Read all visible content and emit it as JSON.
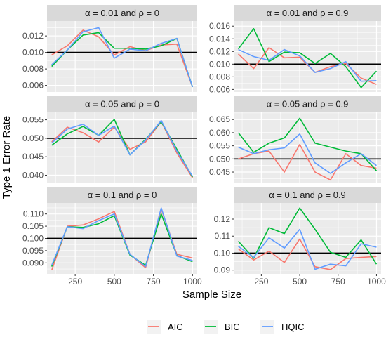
{
  "chart_data": {
    "type": "line",
    "xlabel": "Sample Size",
    "ylabel": "Type 1 Error Rate",
    "x": [
      100,
      200,
      300,
      400,
      500,
      600,
      700,
      800,
      900,
      1000
    ],
    "x_ticks": [
      250,
      500,
      750,
      1000
    ],
    "xlim": [
      70,
      1030
    ],
    "reference_line_color": "#000000",
    "series_colors": {
      "AIC": "#F8766D",
      "BIC": "#00BA38",
      "HQIC": "#619CFF"
    },
    "legend": {
      "position": "bottom",
      "entries": [
        "AIC",
        "BIC",
        "HQIC"
      ]
    },
    "panels": [
      {
        "title": "α = 0.01 and ρ = 0",
        "ylim": [
          0.0052,
          0.0138
        ],
        "y_ticks": [
          0.006,
          0.008,
          0.01,
          0.012
        ],
        "y_tick_labels": [
          "0.006",
          "0.008",
          "0.010",
          "0.012"
        ],
        "reference": 0.01,
        "series": [
          {
            "name": "AIC",
            "values": [
              0.0097,
              0.0108,
              0.0127,
              0.0119,
              0.0097,
              0.0107,
              0.0102,
              0.0109,
              0.011,
              0.0058
            ]
          },
          {
            "name": "BIC",
            "values": [
              0.0083,
              0.0103,
              0.0121,
              0.0124,
              0.0105,
              0.0105,
              0.0104,
              0.0108,
              0.0117,
              0.0058
            ]
          },
          {
            "name": "HQIC",
            "values": [
              0.0085,
              0.0103,
              0.0125,
              0.013,
              0.0093,
              0.0104,
              0.0102,
              0.0111,
              0.0117,
              0.0058
            ]
          }
        ]
      },
      {
        "title": "α = 0.01 and ρ = 0.9",
        "ylim": [
          0.0056,
          0.0168
        ],
        "y_ticks": [
          0.006,
          0.008,
          0.01,
          0.012,
          0.014,
          0.016
        ],
        "y_tick_labels": [
          "0.006",
          "0.008",
          "0.010",
          "0.012",
          "0.014",
          "0.016"
        ],
        "reference": 0.01,
        "series": [
          {
            "name": "AIC",
            "values": [
              0.0116,
              0.0093,
              0.0126,
              0.011,
              0.0111,
              0.0087,
              0.0096,
              0.0101,
              0.0078,
              0.0068
            ]
          },
          {
            "name": "BIC",
            "values": [
              0.0124,
              0.0156,
              0.0104,
              0.0119,
              0.0118,
              0.0101,
              0.0117,
              0.0096,
              0.0063,
              0.0089
            ]
          },
          {
            "name": "HQIC",
            "values": [
              0.0123,
              0.0112,
              0.0106,
              0.0123,
              0.0113,
              0.0087,
              0.0093,
              0.0104,
              0.0073,
              0.0074
            ]
          }
        ]
      },
      {
        "title": "α = 0.05 and ρ = 0",
        "ylim": [
          0.038,
          0.0572
        ],
        "y_ticks": [
          0.04,
          0.045,
          0.05,
          0.055
        ],
        "y_tick_labels": [
          "0.040",
          "0.045",
          "0.050",
          "0.055"
        ],
        "reference": 0.05,
        "series": [
          {
            "name": "AIC",
            "values": [
              0.049,
              0.053,
              0.0515,
              0.049,
              0.053,
              0.047,
              0.049,
              0.0545,
              0.046,
              0.0393
            ]
          },
          {
            "name": "BIC",
            "values": [
              0.0481,
              0.0512,
              0.0532,
              0.0508,
              0.0551,
              0.0455,
              0.0497,
              0.0545,
              0.047,
              0.0395
            ]
          },
          {
            "name": "HQIC",
            "values": [
              0.0487,
              0.0525,
              0.0538,
              0.0508,
              0.0533,
              0.0455,
              0.0495,
              0.0548,
              0.0465,
              0.0397
            ]
          }
        ]
      },
      {
        "title": "α = 0.05 and ρ = 0.9",
        "ylim": [
          0.041,
          0.068
        ],
        "y_ticks": [
          0.045,
          0.05,
          0.055,
          0.06,
          0.065
        ],
        "y_tick_labels": [
          "0.045",
          "0.050",
          "0.055",
          "0.060",
          "0.065"
        ],
        "reference": 0.05,
        "series": [
          {
            "name": "AIC",
            "values": [
              0.05,
              0.052,
              0.053,
              0.045,
              0.0555,
              0.045,
              0.042,
              0.052,
              0.0475,
              0.0465
            ]
          },
          {
            "name": "BIC",
            "values": [
              0.06,
              0.0525,
              0.056,
              0.058,
              0.0655,
              0.056,
              0.0545,
              0.053,
              0.052,
              0.0455
            ]
          },
          {
            "name": "HQIC",
            "values": [
              0.0545,
              0.052,
              0.0535,
              0.0542,
              0.0595,
              0.0485,
              0.0445,
              0.0485,
              0.052,
              0.0475
            ]
          }
        ]
      },
      {
        "title": "α = 0.1 and ρ = 0",
        "ylim": [
          0.0855,
          0.1145
        ],
        "y_ticks": [
          0.09,
          0.095,
          0.1,
          0.105,
          0.11
        ],
        "y_tick_labels": [
          "0.090",
          "0.095",
          "0.100",
          "0.105",
          "0.110"
        ],
        "reference": 0.1,
        "series": [
          {
            "name": "AIC",
            "values": [
              0.087,
              0.105,
              0.1055,
              0.108,
              0.111,
              0.0935,
              0.088,
              0.112,
              0.0935,
              0.092
            ]
          },
          {
            "name": "BIC",
            "values": [
              0.0885,
              0.1048,
              0.1045,
              0.106,
              0.1093,
              0.0932,
              0.089,
              0.11,
              0.093,
              0.0905
            ]
          },
          {
            "name": "HQIC",
            "values": [
              0.089,
              0.1048,
              0.104,
              0.1073,
              0.11,
              0.0935,
              0.0885,
              0.1125,
              0.0928,
              0.091
            ]
          }
        ]
      },
      {
        "title": "α = 0.1 and ρ = 0.9",
        "ylim": [
          0.0878,
          0.1295
        ],
        "y_ticks": [
          0.09,
          0.1,
          0.11,
          0.12
        ],
        "y_tick_labels": [
          "0.09",
          "0.10",
          "0.11",
          "0.12"
        ],
        "reference": 0.1,
        "series": [
          {
            "name": "AIC",
            "values": [
              0.1025,
              0.096,
              0.1012,
              0.0945,
              0.1083,
              0.092,
              0.0903,
              0.0968,
              0.0975,
              0.098
            ]
          },
          {
            "name": "BIC",
            "values": [
              0.107,
              0.097,
              0.115,
              0.1115,
              0.1265,
              0.114,
              0.1005,
              0.0975,
              0.1078,
              0.0935
            ]
          },
          {
            "name": "HQIC",
            "values": [
              0.104,
              0.0975,
              0.109,
              0.103,
              0.114,
              0.0905,
              0.0935,
              0.0925,
              0.1055,
              0.1035
            ]
          }
        ]
      }
    ]
  }
}
